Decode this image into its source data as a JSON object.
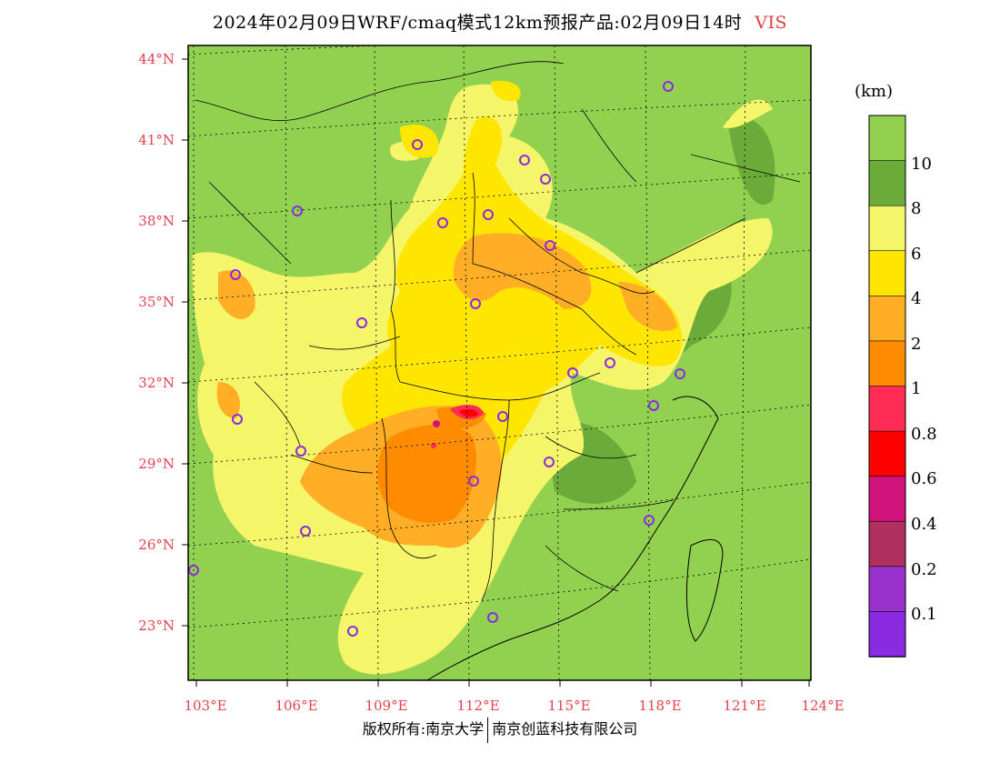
{
  "title": {
    "main": "2024年02月09日WRF/cmaq模式12km预报产品:02月09日14时",
    "variable": "VIS"
  },
  "map": {
    "lat_labels": [
      "44°N",
      "41°N",
      "38°N",
      "35°N",
      "32°N",
      "29°N",
      "26°N",
      "23°N"
    ],
    "lon_labels": [
      "103°E",
      "106°E",
      "109°E",
      "112°E",
      "115°E",
      "118°E",
      "121°E",
      "124°E"
    ],
    "background_color": "#92d050",
    "field_colors": {
      "gt10": "#92d050",
      "8_10": "#6aab3a",
      "6_8": "#f5f56a",
      "4_6": "#ffe600",
      "2_4": "#ffae26",
      "1_2": "#ff8c00",
      "0.8_1": "#ff2c55",
      "0.6_0.8": "#ff0000",
      "0.4_0.6": "#d0127a"
    },
    "station_marker_color": "#8a2be2"
  },
  "colorbar": {
    "unit": "(km)",
    "labels": [
      "10",
      "8",
      "6",
      "4",
      "2",
      "1",
      "0.8",
      "0.6",
      "0.4",
      "0.2",
      "0.1"
    ],
    "colors": [
      "#92d050",
      "#6aab3a",
      "#f5f56a",
      "#ffe600",
      "#ffae26",
      "#ff8c00",
      "#ff2c55",
      "#ff0000",
      "#d0127a",
      "#b03060",
      "#9932cc",
      "#8a2be2"
    ]
  },
  "footer": {
    "left": "版权所有:南京大学",
    "right": "南京创蓝科技有限公司"
  }
}
